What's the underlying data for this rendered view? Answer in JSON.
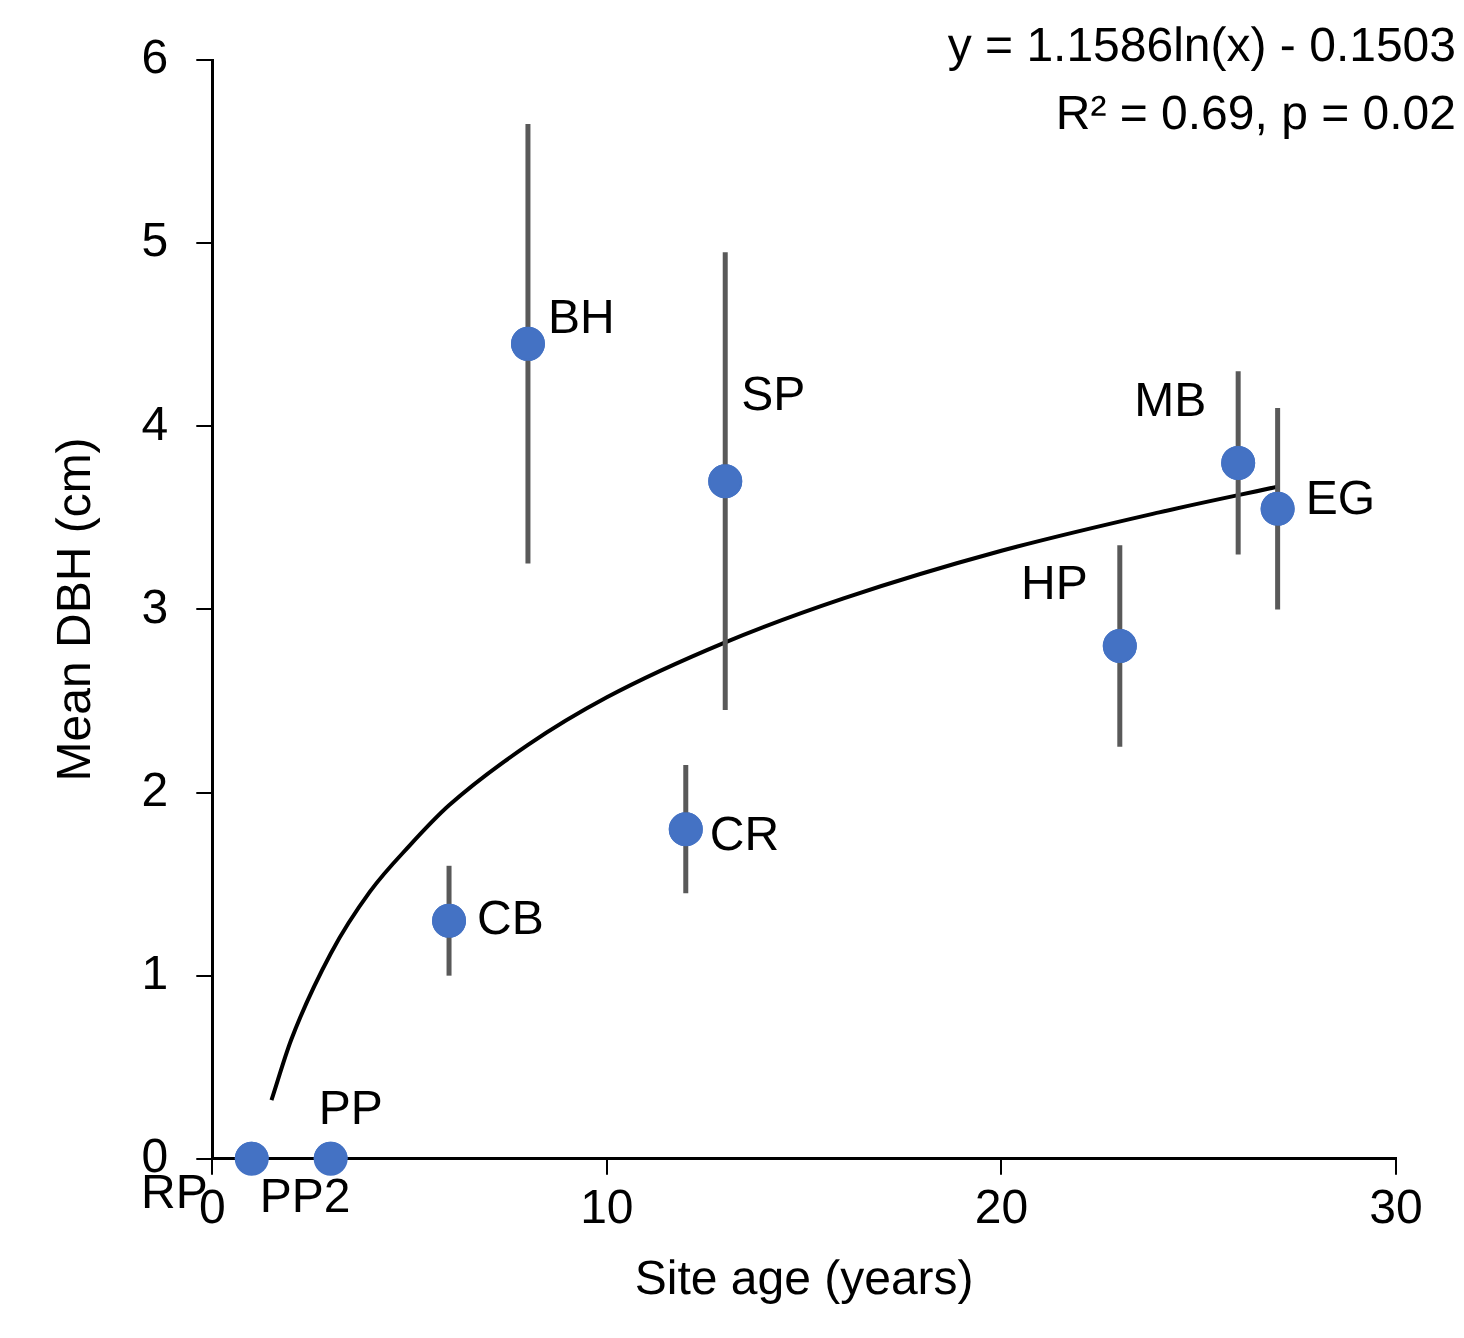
{
  "chart_data": {
    "type": "scatter",
    "xlabel": "Site age (years)",
    "ylabel": "Mean DBH (cm)",
    "xlim": [
      0,
      30
    ],
    "xticks": [
      0,
      10,
      20,
      30
    ],
    "ylim": [
      0,
      6
    ],
    "yticks": [
      0,
      1,
      2,
      3,
      4,
      5,
      6
    ],
    "grid": false,
    "legend": false,
    "marker": "circle",
    "series": [
      {
        "color": "#4472c4",
        "x": [
          1,
          3,
          6,
          8,
          12,
          13,
          23,
          26,
          27
        ],
        "values": [
          0,
          0,
          1.3,
          4.45,
          1.8,
          3.7,
          2.8,
          3.8,
          3.55
        ],
        "errors": [
          null,
          null,
          0.3,
          1.2,
          0.35,
          1.25,
          0.55,
          0.5,
          0.55
        ]
      },
      {
        "type": "line",
        "color": "#000000",
        "marker": "none",
        "x": [
          1.5,
          2,
          3,
          4,
          5,
          6,
          8,
          10,
          13,
          16,
          20,
          24,
          27
        ],
        "values": [
          0.32,
          0.65,
          1.12,
          1.46,
          1.71,
          1.93,
          2.26,
          2.52,
          2.82,
          3.06,
          3.32,
          3.53,
          3.67
        ]
      }
    ],
    "annotations": [
      "y = 1.1586ln(x) - 0.1503",
      "R² = 0.69, p = 0.02",
      {
        "text": "RP",
        "x": 1,
        "y": 0
      },
      {
        "text": "PP2",
        "x": 1,
        "y": 0
      },
      {
        "text": "PP",
        "x": 3,
        "y": 0
      },
      {
        "text": "CB",
        "x": 6,
        "y": 1.3
      },
      {
        "text": "BH",
        "x": 8,
        "y": 4.45
      },
      {
        "text": "CR",
        "x": 12,
        "y": 1.8
      },
      {
        "text": "SP",
        "x": 13,
        "y": 3.7
      },
      {
        "text": "HP",
        "x": 23,
        "y": 2.8
      },
      {
        "text": "MB",
        "x": 26,
        "y": 3.8
      },
      {
        "text": "EG",
        "x": 27,
        "y": 3.55
      }
    ]
  }
}
